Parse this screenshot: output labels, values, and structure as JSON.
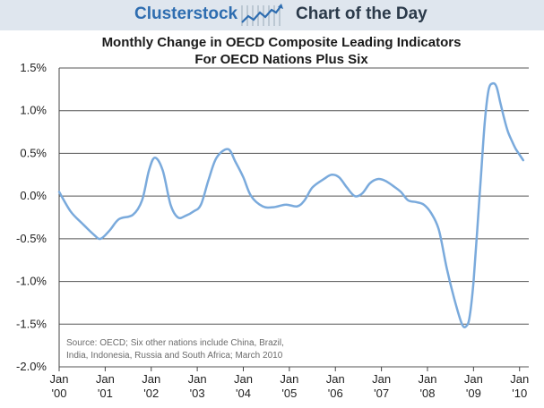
{
  "header": {
    "brand": "Clusterstock",
    "tagline": "Chart of the Day",
    "logo_icon": "rising-line-chart-icon",
    "colors": {
      "banner_bg": "#dfe6ee",
      "brand": "#2e6db0",
      "tagline": "#2b3a4a"
    }
  },
  "chart_data": {
    "type": "line",
    "title": [
      "Monthly Change in OECD Composite Leading Indicators",
      "For OECD Nations Plus Six"
    ],
    "xlabel": "",
    "ylabel": "",
    "ylim": [
      -2.0,
      1.5
    ],
    "xlim": [
      2000.0,
      2010.2
    ],
    "yticks": [
      {
        "value": 1.5,
        "label": "1.5%"
      },
      {
        "value": 1.0,
        "label": "1.0%"
      },
      {
        "value": 0.5,
        "label": "0.5%"
      },
      {
        "value": 0.0,
        "label": "0.0%"
      },
      {
        "value": -0.5,
        "label": "-0.5%"
      },
      {
        "value": -1.0,
        "label": "-1.0%"
      },
      {
        "value": -1.5,
        "label": "-1.5%"
      },
      {
        "value": -2.0,
        "label": "-2.0%"
      }
    ],
    "xticks": [
      {
        "value": 2000,
        "line1": "Jan",
        "line2": "'00"
      },
      {
        "value": 2001,
        "line1": "Jan",
        "line2": "'01"
      },
      {
        "value": 2002,
        "line1": "Jan",
        "line2": "'02"
      },
      {
        "value": 2003,
        "line1": "Jan",
        "line2": "'03"
      },
      {
        "value": 2004,
        "line1": "Jan",
        "line2": "'04"
      },
      {
        "value": 2005,
        "line1": "Jan",
        "line2": "'05"
      },
      {
        "value": 2006,
        "line1": "Jan",
        "line2": "'06"
      },
      {
        "value": 2007,
        "line1": "Jan",
        "line2": "'07"
      },
      {
        "value": 2008,
        "line1": "Jan",
        "line2": "'08"
      },
      {
        "value": 2009,
        "line1": "Jan",
        "line2": "'09"
      },
      {
        "value": 2010,
        "line1": "Jan",
        "line2": "'10"
      }
    ],
    "grid": true,
    "series": [
      {
        "color": "#7aaadc",
        "points": [
          [
            2000.0,
            0.05
          ],
          [
            2000.25,
            -0.18
          ],
          [
            2000.5,
            -0.32
          ],
          [
            2000.75,
            -0.45
          ],
          [
            2000.9,
            -0.5
          ],
          [
            2001.1,
            -0.4
          ],
          [
            2001.3,
            -0.27
          ],
          [
            2001.6,
            -0.22
          ],
          [
            2001.8,
            -0.05
          ],
          [
            2001.95,
            0.3
          ],
          [
            2002.08,
            0.45
          ],
          [
            2002.25,
            0.3
          ],
          [
            2002.42,
            -0.1
          ],
          [
            2002.58,
            -0.25
          ],
          [
            2002.75,
            -0.23
          ],
          [
            2002.92,
            -0.18
          ],
          [
            2003.08,
            -0.1
          ],
          [
            2003.25,
            0.2
          ],
          [
            2003.42,
            0.45
          ],
          [
            2003.67,
            0.55
          ],
          [
            2003.83,
            0.4
          ],
          [
            2004.0,
            0.22
          ],
          [
            2004.17,
            0.0
          ],
          [
            2004.42,
            -0.12
          ],
          [
            2004.67,
            -0.13
          ],
          [
            2004.92,
            -0.1
          ],
          [
            2005.17,
            -0.12
          ],
          [
            2005.33,
            -0.05
          ],
          [
            2005.5,
            0.1
          ],
          [
            2005.75,
            0.2
          ],
          [
            2005.92,
            0.25
          ],
          [
            2006.08,
            0.22
          ],
          [
            2006.25,
            0.1
          ],
          [
            2006.42,
            0.0
          ],
          [
            2006.58,
            0.03
          ],
          [
            2006.75,
            0.15
          ],
          [
            2006.92,
            0.2
          ],
          [
            2007.08,
            0.18
          ],
          [
            2007.25,
            0.12
          ],
          [
            2007.42,
            0.05
          ],
          [
            2007.58,
            -0.05
          ],
          [
            2007.75,
            -0.07
          ],
          [
            2007.92,
            -0.1
          ],
          [
            2008.08,
            -0.2
          ],
          [
            2008.25,
            -0.4
          ],
          [
            2008.42,
            -0.85
          ],
          [
            2008.58,
            -1.2
          ],
          [
            2008.75,
            -1.5
          ],
          [
            2008.85,
            -1.52
          ],
          [
            2008.92,
            -1.4
          ],
          [
            2009.0,
            -1.0
          ],
          [
            2009.08,
            -0.4
          ],
          [
            2009.17,
            0.3
          ],
          [
            2009.25,
            0.9
          ],
          [
            2009.33,
            1.25
          ],
          [
            2009.42,
            1.32
          ],
          [
            2009.5,
            1.28
          ],
          [
            2009.58,
            1.1
          ],
          [
            2009.67,
            0.9
          ],
          [
            2009.75,
            0.75
          ],
          [
            2009.83,
            0.65
          ],
          [
            2009.92,
            0.55
          ],
          [
            2010.08,
            0.42
          ]
        ]
      }
    ],
    "source_note": [
      "Source: OECD; Six other nations include China, Brazil,",
      "India, Indonesia, Russia and South Africa; March 2010"
    ],
    "colors": {
      "line": "#7aaadc",
      "grid": "#555555",
      "axis": "#444444"
    }
  }
}
